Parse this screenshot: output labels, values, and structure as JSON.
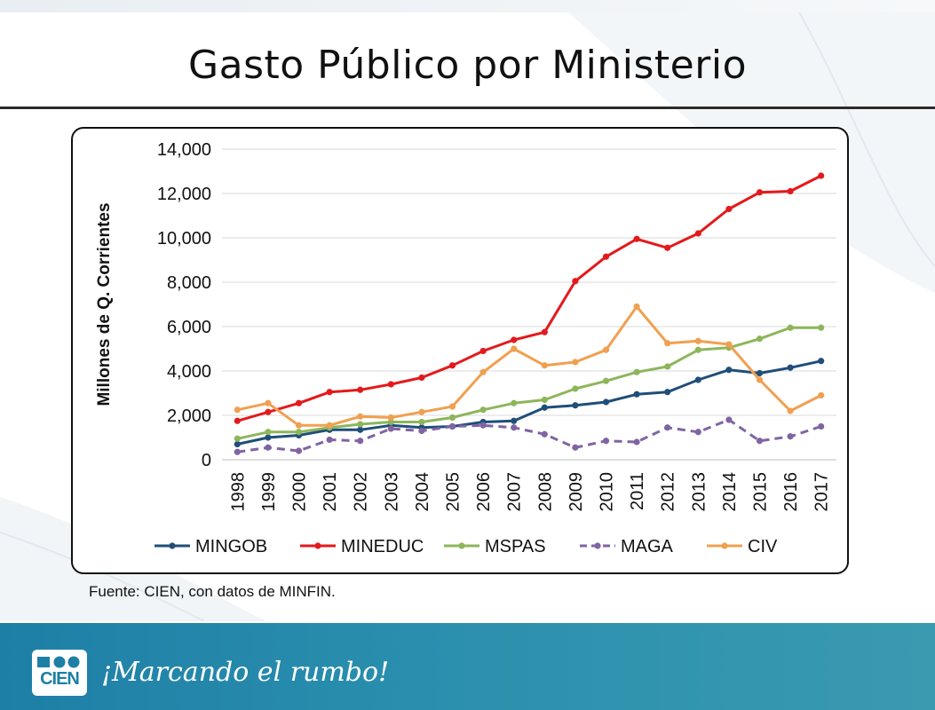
{
  "slide": {
    "title": "Gasto Público por Ministerio",
    "source": "Fuente: CIEN, con datos de MINFIN.",
    "tagline": "¡Marcando el rumbo!",
    "logo_text": "CIEN"
  },
  "chart_data": {
    "type": "line",
    "title": "",
    "xlabel": "",
    "ylabel": "Millones de Q. Corrientes",
    "ylim": [
      0,
      14000
    ],
    "yticks": [
      0,
      2000,
      4000,
      6000,
      8000,
      10000,
      12000,
      14000
    ],
    "ytick_labels": [
      "0",
      "2,000",
      "4,000",
      "6,000",
      "8,000",
      "10,000",
      "12,000",
      "14,000"
    ],
    "categories": [
      "1998",
      "1999",
      "2000",
      "2001",
      "2002",
      "2003",
      "2004",
      "2005",
      "2006",
      "2007",
      "2008",
      "2009",
      "2010",
      "2011",
      "2012",
      "2013",
      "2014",
      "2015",
      "2016",
      "2017"
    ],
    "grid": true,
    "legend_position": "bottom",
    "series": [
      {
        "name": "MINGOB",
        "color": "#1f4e79",
        "dash": false,
        "values": [
          700,
          1000,
          1100,
          1350,
          1350,
          1550,
          1450,
          1500,
          1700,
          1750,
          2350,
          2450,
          2600,
          2950,
          3050,
          3600,
          4050,
          3900,
          4150,
          4450
        ]
      },
      {
        "name": "MINEDUC",
        "color": "#e31a1c",
        "dash": false,
        "values": [
          1750,
          2150,
          2550,
          3050,
          3150,
          3400,
          3700,
          4250,
          4900,
          5400,
          5750,
          8050,
          9150,
          9950,
          9550,
          10200,
          11300,
          12050,
          12100,
          12800
        ]
      },
      {
        "name": "MSPAS",
        "color": "#8db65a",
        "dash": false,
        "values": [
          950,
          1250,
          1250,
          1450,
          1600,
          1700,
          1700,
          1900,
          2250,
          2550,
          2700,
          3200,
          3550,
          3950,
          4200,
          4950,
          5050,
          5450,
          5950,
          5950
        ]
      },
      {
        "name": "MAGA",
        "color": "#8064a2",
        "dash": true,
        "values": [
          350,
          550,
          400,
          900,
          850,
          1400,
          1300,
          1500,
          1550,
          1450,
          1150,
          550,
          850,
          800,
          1450,
          1250,
          1800,
          850,
          1050,
          1500
        ]
      },
      {
        "name": "CIV",
        "color": "#f0a050",
        "dash": false,
        "values": [
          2250,
          2550,
          1550,
          1550,
          1950,
          1900,
          2150,
          2400,
          3950,
          5000,
          4250,
          4400,
          4950,
          6900,
          5250,
          5350,
          5200,
          3600,
          2200,
          2900
        ]
      }
    ]
  }
}
